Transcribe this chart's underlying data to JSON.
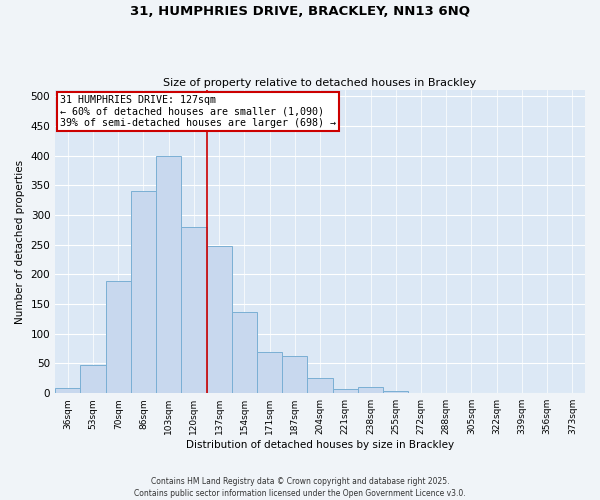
{
  "title": "31, HUMPHRIES DRIVE, BRACKLEY, NN13 6NQ",
  "subtitle": "Size of property relative to detached houses in Brackley",
  "xlabel": "Distribution of detached houses by size in Brackley",
  "ylabel": "Number of detached properties",
  "bar_labels": [
    "36sqm",
    "53sqm",
    "70sqm",
    "86sqm",
    "103sqm",
    "120sqm",
    "137sqm",
    "154sqm",
    "171sqm",
    "187sqm",
    "204sqm",
    "221sqm",
    "238sqm",
    "255sqm",
    "272sqm",
    "288sqm",
    "305sqm",
    "322sqm",
    "339sqm",
    "356sqm",
    "373sqm"
  ],
  "bar_values": [
    8,
    47,
    188,
    340,
    400,
    280,
    247,
    137,
    70,
    62,
    25,
    7,
    10,
    3,
    0,
    0,
    0,
    0,
    0,
    0,
    0
  ],
  "bar_color": "#c8d8ee",
  "bar_edge_color": "#7aafd4",
  "vline_x": 5.5,
  "vline_color": "#cc0000",
  "annotation_title": "31 HUMPHRIES DRIVE: 127sqm",
  "annotation_line1": "← 60% of detached houses are smaller (1,090)",
  "annotation_line2": "39% of semi-detached houses are larger (698) →",
  "annotation_box_color": "#ffffff",
  "annotation_box_edge": "#cc0000",
  "ylim": [
    0,
    510
  ],
  "yticks": [
    0,
    50,
    100,
    150,
    200,
    250,
    300,
    350,
    400,
    450,
    500
  ],
  "bg_color": "#dce8f5",
  "fig_bg_color": "#f0f4f8",
  "footnote1": "Contains HM Land Registry data © Crown copyright and database right 2025.",
  "footnote2": "Contains public sector information licensed under the Open Government Licence v3.0."
}
